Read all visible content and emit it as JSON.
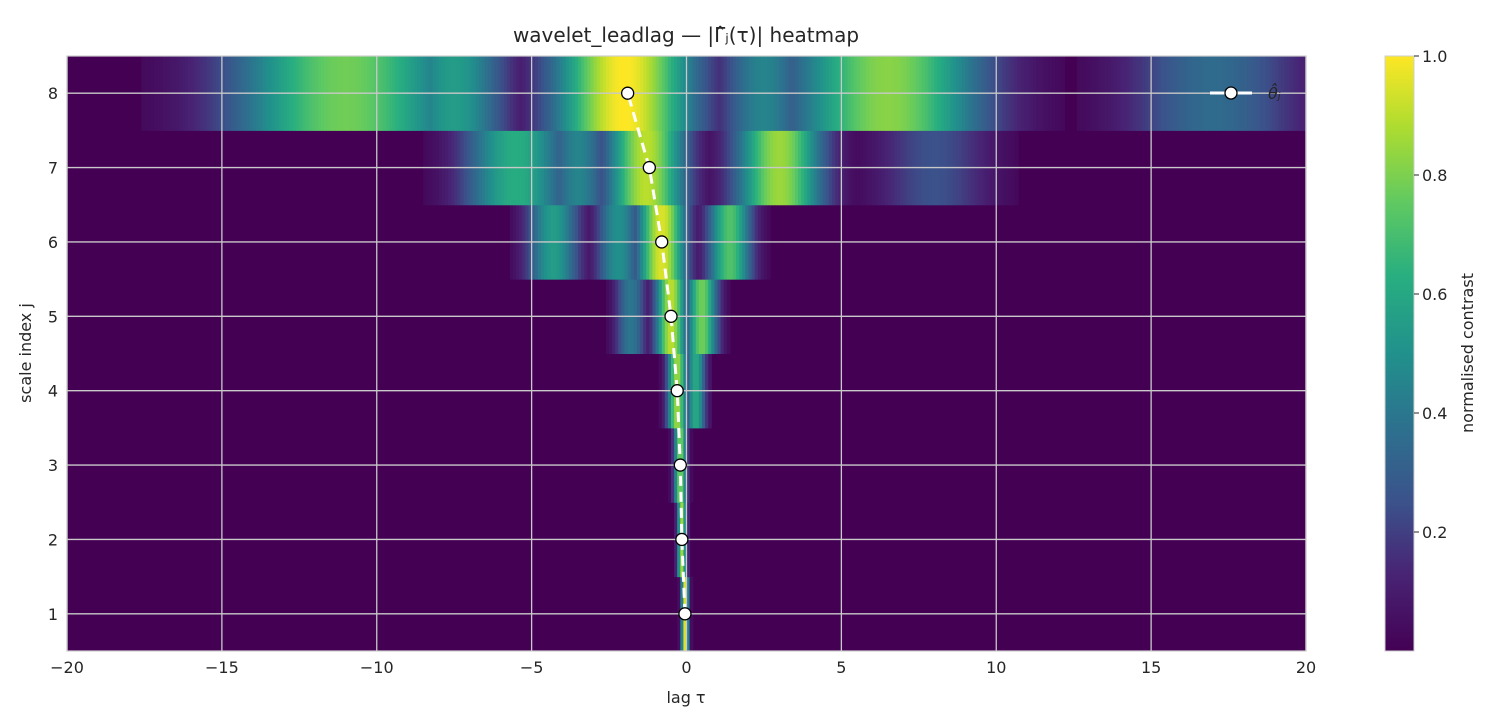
{
  "chart_data": {
    "type": "heatmap",
    "title": "wavelet_leadlag — |Γ̂ⱼ(τ)| heatmap",
    "xlabel": "lag τ",
    "ylabel": "scale index j",
    "xlim": [
      -20,
      20
    ],
    "ylim": [
      0.5,
      8.5
    ],
    "x_ticks": [
      -20,
      -15,
      -10,
      -5,
      0,
      5,
      10,
      15,
      20
    ],
    "x_tick_labels": [
      "−20",
      "−15",
      "−10",
      "−5",
      "0",
      "5",
      "10",
      "15",
      "20"
    ],
    "y_ticks": [
      1,
      2,
      3,
      4,
      5,
      6,
      7,
      8
    ],
    "y_tick_labels": [
      "1",
      "2",
      "3",
      "4",
      "5",
      "6",
      "7",
      "8"
    ],
    "grid": true,
    "colormap": "viridis",
    "colorbar": {
      "label": "normalised contrast",
      "ticks": [
        0.2,
        0.4,
        0.6,
        0.8,
        1.0
      ],
      "tick_labels": [
        "0.2",
        "0.4",
        "0.6",
        "0.8",
        "1.0"
      ],
      "range": [
        0.0,
        1.0
      ]
    },
    "legend": {
      "label": "θ̂ⱼ",
      "placement": "top-right"
    },
    "series": [
      {
        "name": "θ̂ⱼ",
        "x": [
          -0.05,
          -0.15,
          -0.2,
          -0.3,
          -0.5,
          -0.8,
          -1.2,
          -1.9
        ],
        "y": [
          1,
          2,
          3,
          4,
          5,
          6,
          7,
          8
        ]
      }
    ],
    "heat_blobs": [
      {
        "j": 8,
        "tau": -2.0,
        "width": 1.6,
        "amp": 1.0
      },
      {
        "j": 8,
        "tau": -11.0,
        "width": 2.6,
        "amp": 0.78
      },
      {
        "j": 8,
        "tau": -7.5,
        "width": 1.2,
        "amp": 0.55
      },
      {
        "j": 8,
        "tau": 6.5,
        "width": 2.2,
        "amp": 0.82
      },
      {
        "j": 8,
        "tau": 17.0,
        "width": 2.0,
        "amp": 0.35
      },
      {
        "j": 8,
        "tau": 2.5,
        "width": 1.0,
        "amp": 0.45
      },
      {
        "j": 7,
        "tau": -1.3,
        "width": 0.9,
        "amp": 0.9
      },
      {
        "j": 7,
        "tau": -5.5,
        "width": 1.2,
        "amp": 0.62
      },
      {
        "j": 7,
        "tau": 3.0,
        "width": 1.0,
        "amp": 0.85
      },
      {
        "j": 7,
        "tau": -3.5,
        "width": 0.7,
        "amp": 0.45
      },
      {
        "j": 7,
        "tau": 8.0,
        "width": 1.3,
        "amp": 0.25
      },
      {
        "j": 6,
        "tau": -0.8,
        "width": 0.55,
        "amp": 0.95
      },
      {
        "j": 6,
        "tau": 1.4,
        "width": 0.5,
        "amp": 0.72
      },
      {
        "j": 6,
        "tau": -4.3,
        "width": 0.6,
        "amp": 0.55
      },
      {
        "j": 6,
        "tau": -2.2,
        "width": 0.5,
        "amp": 0.5
      },
      {
        "j": 5,
        "tau": -0.5,
        "width": 0.35,
        "amp": 0.9
      },
      {
        "j": 5,
        "tau": 0.5,
        "width": 0.35,
        "amp": 0.78
      },
      {
        "j": 5,
        "tau": -1.8,
        "width": 0.35,
        "amp": 0.4
      },
      {
        "j": 4,
        "tau": -0.3,
        "width": 0.22,
        "amp": 0.85
      },
      {
        "j": 4,
        "tau": 0.3,
        "width": 0.22,
        "amp": 0.6
      },
      {
        "j": 3,
        "tau": -0.2,
        "width": 0.14,
        "amp": 0.8
      },
      {
        "j": 2,
        "tau": -0.15,
        "width": 0.1,
        "amp": 0.85
      },
      {
        "j": 1,
        "tau": -0.05,
        "width": 0.08,
        "amp": 0.95
      }
    ]
  }
}
